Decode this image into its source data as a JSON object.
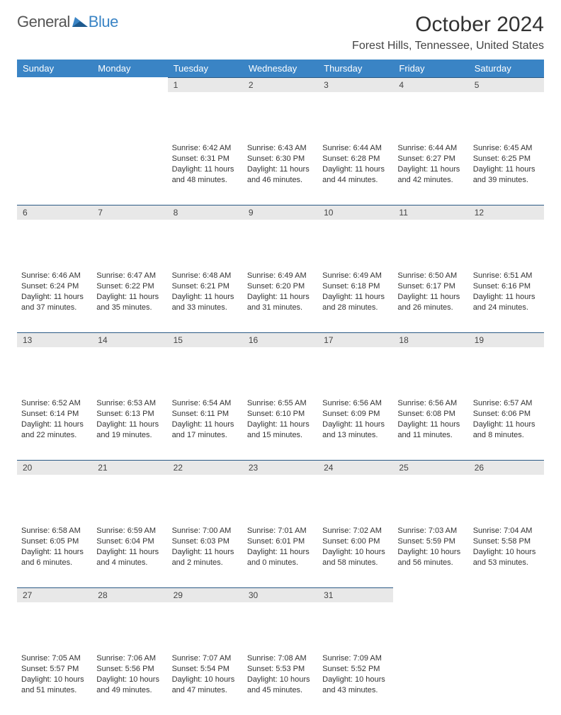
{
  "logo": {
    "part1": "General",
    "part2": "Blue"
  },
  "title": "October 2024",
  "location": "Forest Hills, Tennessee, United States",
  "headerColor": "#3a84c5",
  "dayHeaders": [
    "Sunday",
    "Monday",
    "Tuesday",
    "Wednesday",
    "Thursday",
    "Friday",
    "Saturday"
  ],
  "weeks": [
    [
      {
        "n": "",
        "text": ""
      },
      {
        "n": "",
        "text": ""
      },
      {
        "n": "1",
        "text": "Sunrise: 6:42 AM\nSunset: 6:31 PM\nDaylight: 11 hours and 48 minutes."
      },
      {
        "n": "2",
        "text": "Sunrise: 6:43 AM\nSunset: 6:30 PM\nDaylight: 11 hours and 46 minutes."
      },
      {
        "n": "3",
        "text": "Sunrise: 6:44 AM\nSunset: 6:28 PM\nDaylight: 11 hours and 44 minutes."
      },
      {
        "n": "4",
        "text": "Sunrise: 6:44 AM\nSunset: 6:27 PM\nDaylight: 11 hours and 42 minutes."
      },
      {
        "n": "5",
        "text": "Sunrise: 6:45 AM\nSunset: 6:25 PM\nDaylight: 11 hours and 39 minutes."
      }
    ],
    [
      {
        "n": "6",
        "text": "Sunrise: 6:46 AM\nSunset: 6:24 PM\nDaylight: 11 hours and 37 minutes."
      },
      {
        "n": "7",
        "text": "Sunrise: 6:47 AM\nSunset: 6:22 PM\nDaylight: 11 hours and 35 minutes."
      },
      {
        "n": "8",
        "text": "Sunrise: 6:48 AM\nSunset: 6:21 PM\nDaylight: 11 hours and 33 minutes."
      },
      {
        "n": "9",
        "text": "Sunrise: 6:49 AM\nSunset: 6:20 PM\nDaylight: 11 hours and 31 minutes."
      },
      {
        "n": "10",
        "text": "Sunrise: 6:49 AM\nSunset: 6:18 PM\nDaylight: 11 hours and 28 minutes."
      },
      {
        "n": "11",
        "text": "Sunrise: 6:50 AM\nSunset: 6:17 PM\nDaylight: 11 hours and 26 minutes."
      },
      {
        "n": "12",
        "text": "Sunrise: 6:51 AM\nSunset: 6:16 PM\nDaylight: 11 hours and 24 minutes."
      }
    ],
    [
      {
        "n": "13",
        "text": "Sunrise: 6:52 AM\nSunset: 6:14 PM\nDaylight: 11 hours and 22 minutes."
      },
      {
        "n": "14",
        "text": "Sunrise: 6:53 AM\nSunset: 6:13 PM\nDaylight: 11 hours and 19 minutes."
      },
      {
        "n": "15",
        "text": "Sunrise: 6:54 AM\nSunset: 6:11 PM\nDaylight: 11 hours and 17 minutes."
      },
      {
        "n": "16",
        "text": "Sunrise: 6:55 AM\nSunset: 6:10 PM\nDaylight: 11 hours and 15 minutes."
      },
      {
        "n": "17",
        "text": "Sunrise: 6:56 AM\nSunset: 6:09 PM\nDaylight: 11 hours and 13 minutes."
      },
      {
        "n": "18",
        "text": "Sunrise: 6:56 AM\nSunset: 6:08 PM\nDaylight: 11 hours and 11 minutes."
      },
      {
        "n": "19",
        "text": "Sunrise: 6:57 AM\nSunset: 6:06 PM\nDaylight: 11 hours and 8 minutes."
      }
    ],
    [
      {
        "n": "20",
        "text": "Sunrise: 6:58 AM\nSunset: 6:05 PM\nDaylight: 11 hours and 6 minutes."
      },
      {
        "n": "21",
        "text": "Sunrise: 6:59 AM\nSunset: 6:04 PM\nDaylight: 11 hours and 4 minutes."
      },
      {
        "n": "22",
        "text": "Sunrise: 7:00 AM\nSunset: 6:03 PM\nDaylight: 11 hours and 2 minutes."
      },
      {
        "n": "23",
        "text": "Sunrise: 7:01 AM\nSunset: 6:01 PM\nDaylight: 11 hours and 0 minutes."
      },
      {
        "n": "24",
        "text": "Sunrise: 7:02 AM\nSunset: 6:00 PM\nDaylight: 10 hours and 58 minutes."
      },
      {
        "n": "25",
        "text": "Sunrise: 7:03 AM\nSunset: 5:59 PM\nDaylight: 10 hours and 56 minutes."
      },
      {
        "n": "26",
        "text": "Sunrise: 7:04 AM\nSunset: 5:58 PM\nDaylight: 10 hours and 53 minutes."
      }
    ],
    [
      {
        "n": "27",
        "text": "Sunrise: 7:05 AM\nSunset: 5:57 PM\nDaylight: 10 hours and 51 minutes."
      },
      {
        "n": "28",
        "text": "Sunrise: 7:06 AM\nSunset: 5:56 PM\nDaylight: 10 hours and 49 minutes."
      },
      {
        "n": "29",
        "text": "Sunrise: 7:07 AM\nSunset: 5:54 PM\nDaylight: 10 hours and 47 minutes."
      },
      {
        "n": "30",
        "text": "Sunrise: 7:08 AM\nSunset: 5:53 PM\nDaylight: 10 hours and 45 minutes."
      },
      {
        "n": "31",
        "text": "Sunrise: 7:09 AM\nSunset: 5:52 PM\nDaylight: 10 hours and 43 minutes."
      },
      {
        "n": "",
        "text": ""
      },
      {
        "n": "",
        "text": ""
      }
    ]
  ]
}
